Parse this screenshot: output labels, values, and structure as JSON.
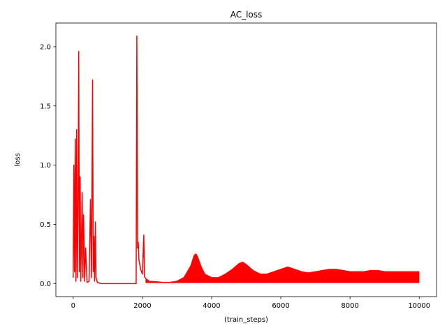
{
  "chart_data": {
    "type": "line",
    "title": "AC_loss",
    "xlabel": "(train_steps)",
    "ylabel": "loss",
    "xlim": [
      -500,
      10500
    ],
    "ylim": [
      -0.11,
      2.2
    ],
    "x_ticks": [
      0,
      2000,
      4000,
      6000,
      8000,
      10000
    ],
    "x_tick_labels": [
      "0",
      "2000",
      "4000",
      "6000",
      "8000",
      "10000"
    ],
    "y_ticks": [
      0.0,
      0.5,
      1.0,
      1.5,
      2.0
    ],
    "y_tick_labels": [
      "0.0",
      "0.5",
      "1.0",
      "1.5",
      "2.0"
    ],
    "grid": false,
    "legend": "none",
    "series": [
      {
        "color": "#ff0000",
        "points": [
          [
            0,
            0.05
          ],
          [
            20,
            1.0
          ],
          [
            40,
            0.1
          ],
          [
            60,
            1.22
          ],
          [
            80,
            0.02
          ],
          [
            100,
            1.3
          ],
          [
            120,
            0.05
          ],
          [
            140,
            0.6
          ],
          [
            160,
            1.96
          ],
          [
            180,
            0.1
          ],
          [
            200,
            0.9
          ],
          [
            220,
            0.02
          ],
          [
            260,
            0.77
          ],
          [
            280,
            0.05
          ],
          [
            300,
            0.58
          ],
          [
            330,
            0.02
          ],
          [
            360,
            0.3
          ],
          [
            400,
            0.01
          ],
          [
            460,
            0.02
          ],
          [
            500,
            0.71
          ],
          [
            530,
            0.05
          ],
          [
            560,
            1.72
          ],
          [
            580,
            0.1
          ],
          [
            600,
            0.4
          ],
          [
            620,
            0.02
          ],
          [
            640,
            0.52
          ],
          [
            660,
            0.05
          ],
          [
            700,
            0.01
          ],
          [
            750,
            0.005
          ],
          [
            800,
            0.0
          ],
          [
            1000,
            0.0
          ],
          [
            1200,
            0.0
          ],
          [
            1400,
            0.0
          ],
          [
            1600,
            0.0
          ],
          [
            1800,
            0.0
          ],
          [
            1820,
            0.0
          ],
          [
            1840,
            2.09
          ],
          [
            1860,
            0.3
          ],
          [
            1880,
            0.35
          ],
          [
            1900,
            0.2
          ],
          [
            1950,
            0.12
          ],
          [
            2000,
            0.08
          ],
          [
            2040,
            0.41
          ],
          [
            2060,
            0.06
          ],
          [
            2100,
            0.04
          ],
          [
            2200,
            0.02
          ],
          [
            2400,
            0.015
          ],
          [
            2600,
            0.01
          ],
          [
            2800,
            0.01
          ],
          [
            3000,
            0.02
          ],
          [
            3200,
            0.05
          ],
          [
            3400,
            0.15
          ],
          [
            3500,
            0.24
          ],
          [
            3550,
            0.25
          ],
          [
            3600,
            0.22
          ],
          [
            3700,
            0.14
          ],
          [
            3800,
            0.08
          ],
          [
            4000,
            0.05
          ],
          [
            4200,
            0.05
          ],
          [
            4400,
            0.08
          ],
          [
            4600,
            0.12
          ],
          [
            4800,
            0.17
          ],
          [
            4900,
            0.18
          ],
          [
            5000,
            0.16
          ],
          [
            5200,
            0.11
          ],
          [
            5400,
            0.08
          ],
          [
            5600,
            0.08
          ],
          [
            5800,
            0.1
          ],
          [
            6000,
            0.12
          ],
          [
            6200,
            0.14
          ],
          [
            6400,
            0.12
          ],
          [
            6600,
            0.1
          ],
          [
            6800,
            0.09
          ],
          [
            7000,
            0.1
          ],
          [
            7200,
            0.11
          ],
          [
            7400,
            0.12
          ],
          [
            7600,
            0.12
          ],
          [
            7800,
            0.11
          ],
          [
            8000,
            0.1
          ],
          [
            8200,
            0.1
          ],
          [
            8400,
            0.1
          ],
          [
            8600,
            0.11
          ],
          [
            8800,
            0.11
          ],
          [
            9000,
            0.1
          ],
          [
            9200,
            0.1
          ],
          [
            9400,
            0.1
          ],
          [
            9600,
            0.1
          ],
          [
            9800,
            0.1
          ],
          [
            10000,
            0.1
          ]
        ]
      }
    ],
    "noise_band": {
      "color": "#ff0000",
      "x_from": 2100,
      "x_to": 10000,
      "floor": 0.0
    }
  }
}
